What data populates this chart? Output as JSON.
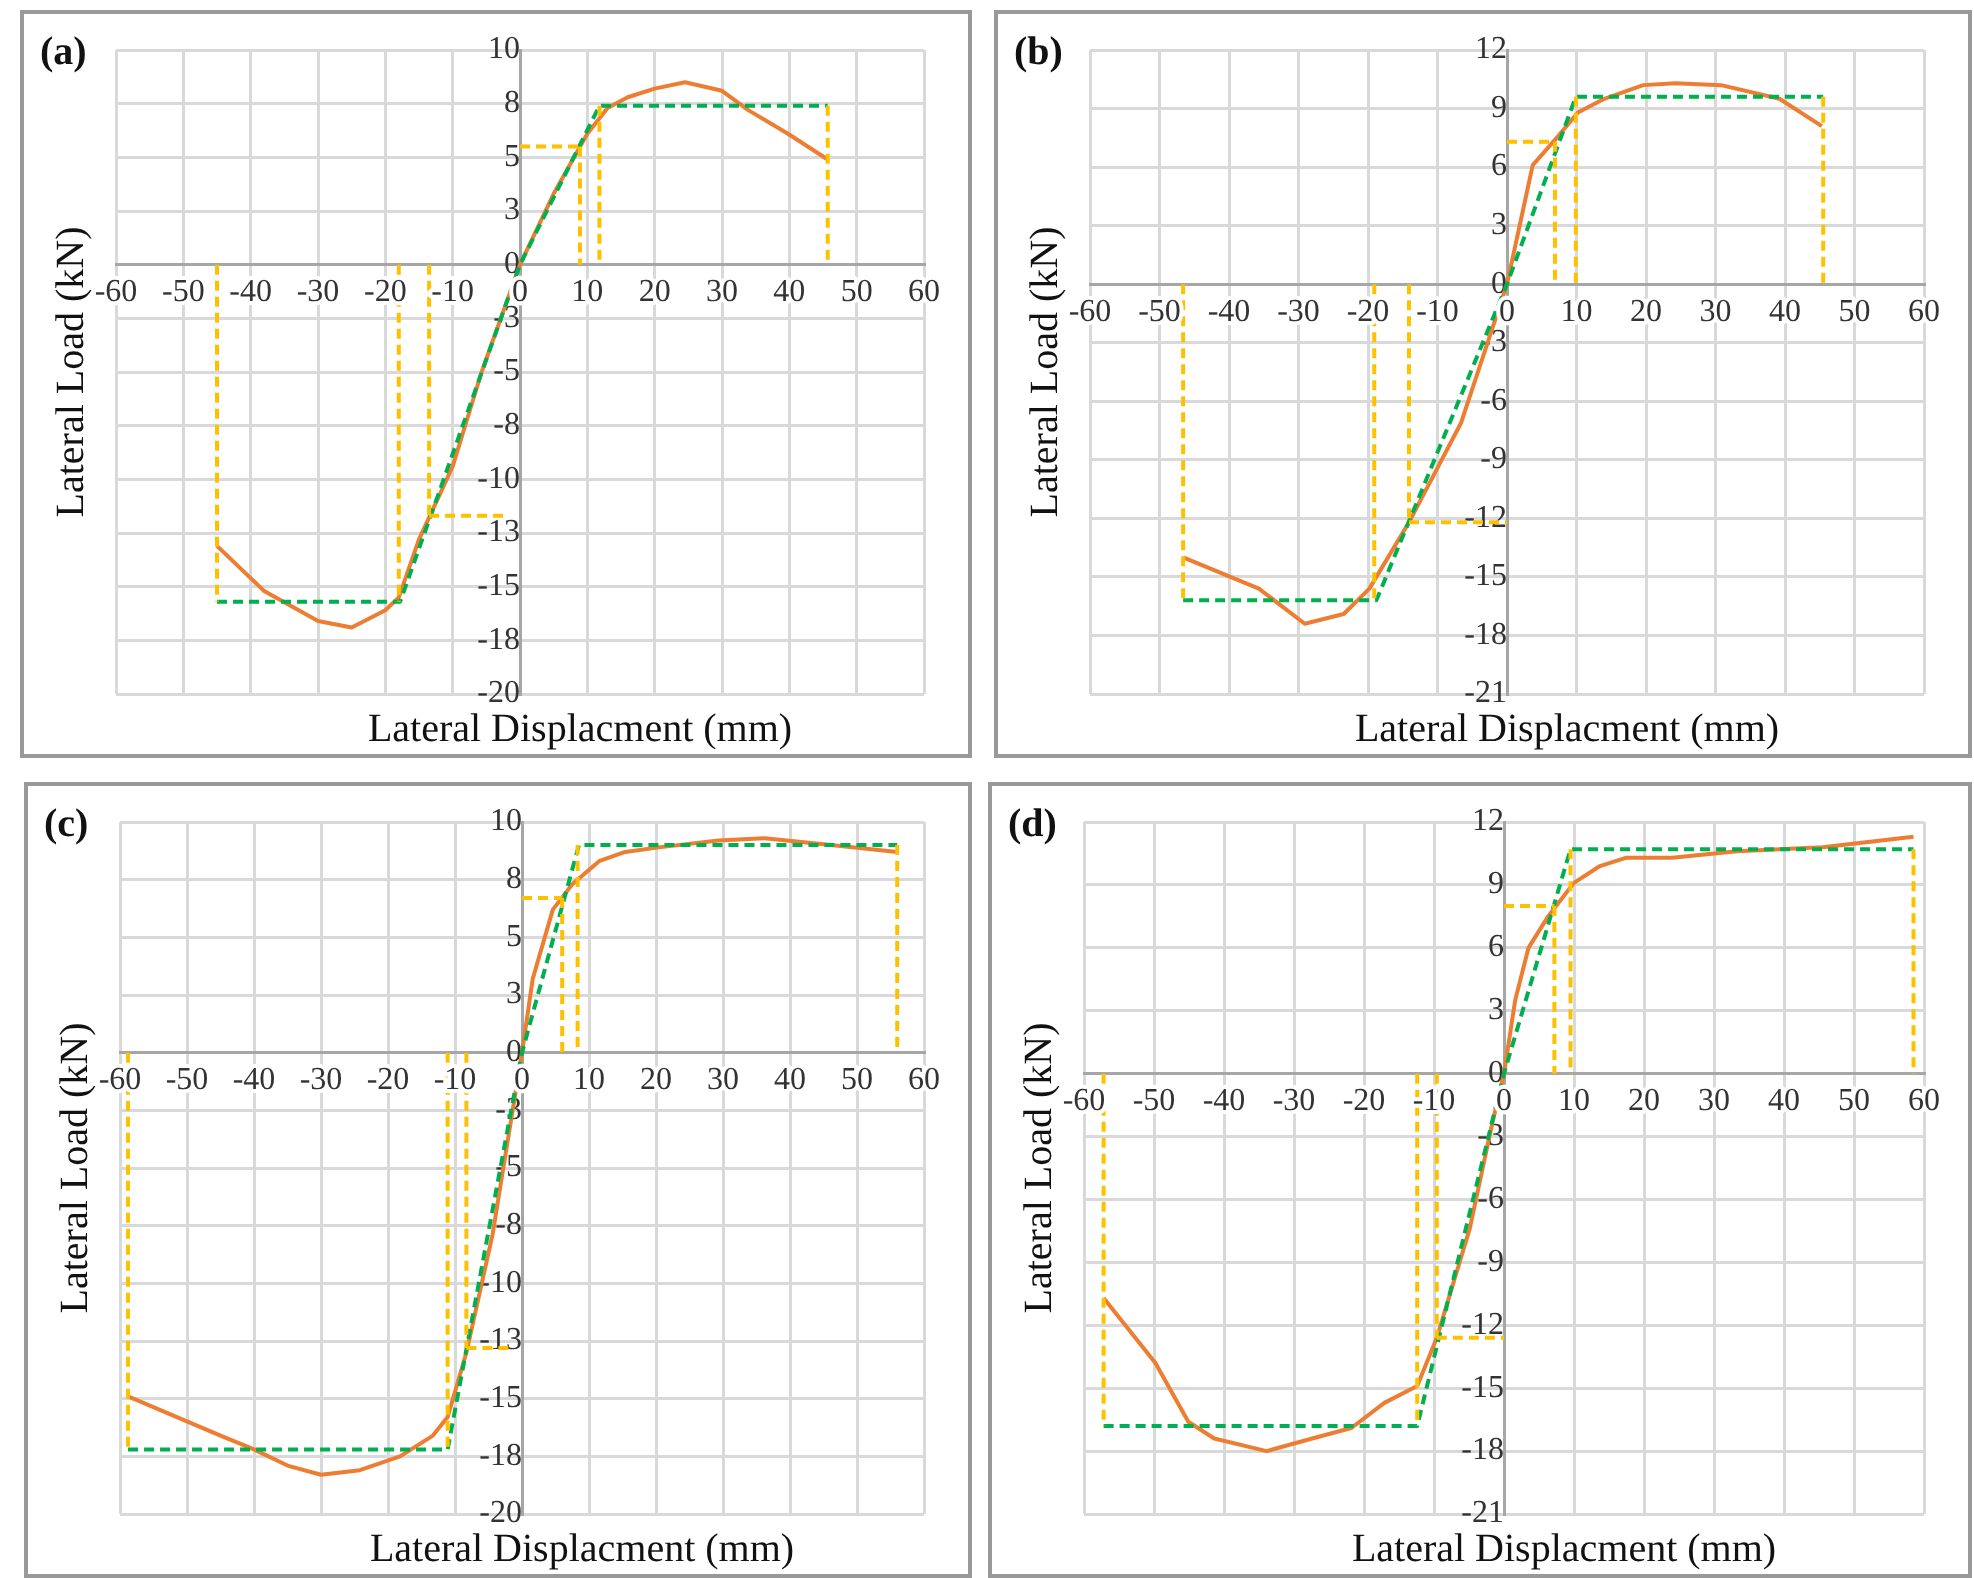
{
  "chart_data": [
    {
      "type": "line",
      "title": "(a)",
      "xlabel": "Lateral Displacment (mm)",
      "ylabel": "Lateral Load (kN)",
      "xlim": [
        -60,
        60
      ],
      "xticks": [
        -60,
        -50,
        -40,
        -30,
        -20,
        -10,
        0,
        10,
        20,
        30,
        40,
        50,
        60
      ],
      "ylim": [
        -20,
        10
      ],
      "yticks": [
        -20,
        {
          "value": -17.5,
          "label": "-18"
        },
        -15,
        {
          "value": -12.5,
          "label": "-13"
        },
        -10,
        {
          "value": -7.5,
          "label": "-8"
        },
        -5,
        {
          "value": -2.5,
          "label": "-3"
        },
        0,
        {
          "value": 2.5,
          "label": "3"
        },
        5,
        {
          "value": 7.5,
          "label": "8"
        },
        10
      ],
      "grid": true,
      "marker": "none",
      "series": [
        {
          "color": "#ffc000",
          "line_style": "dashed",
          "x": [
            -45,
            -45,
            null,
            -18,
            -18,
            null,
            -13.5,
            -13.5,
            null,
            -13.5,
            -1.8,
            null,
            0,
            8.9,
            null,
            8.9,
            8.9,
            null,
            11.8,
            11.8,
            null,
            45.7,
            45.7
          ],
          "values": [
            0,
            -15.7,
            null,
            0,
            -15.7,
            null,
            0,
            -11.7,
            null,
            -11.7,
            -11.7,
            null,
            5.5,
            5.5,
            null,
            5.5,
            0,
            null,
            7.4,
            0,
            null,
            7.4,
            0
          ]
        },
        {
          "color": "#00b050",
          "line_style": "dashed",
          "x": [
            -45,
            -17.8,
            0,
            11.8,
            45.7
          ],
          "values": [
            -15.7,
            -15.7,
            0,
            7.4,
            7.4
          ]
        },
        {
          "color": "#ed7d31",
          "line_style": "solid",
          "x": [
            -45,
            -38,
            -30,
            -25,
            -20,
            -18,
            -15,
            -10,
            -5.7,
            0,
            5,
            10,
            13,
            16,
            20,
            24.5,
            30,
            33.9,
            39.8,
            45.7
          ],
          "values": [
            -13.1,
            -15.2,
            -16.6,
            -16.9,
            -16.1,
            -15.5,
            -12.8,
            -9.4,
            -5,
            0,
            3.3,
            6.1,
            7.3,
            7.8,
            8.2,
            8.5,
            8.1,
            7.2,
            6.1,
            4.9
          ]
        }
      ]
    },
    {
      "type": "line",
      "title": "(b)",
      "xlabel": "Lateral Displacment (mm)",
      "ylabel": "Lateral Load (kN)",
      "xlim": [
        -60,
        60
      ],
      "xticks": [
        -60,
        -50,
        -40,
        -30,
        -20,
        -10,
        0,
        10,
        20,
        30,
        40,
        50,
        60
      ],
      "ylim": [
        -21,
        12
      ],
      "yticks": [
        -21,
        -18,
        -15,
        -12,
        -9,
        -6,
        -3,
        0,
        3,
        6,
        9,
        12
      ],
      "grid": true,
      "marker": "none",
      "series": [
        {
          "color": "#ffc000",
          "line_style": "dashed",
          "x": [
            -46.6,
            -46.6,
            null,
            -19.1,
            -19.1,
            null,
            -14.1,
            -14.1,
            null,
            -14.1,
            0,
            null,
            0,
            6.9,
            null,
            6.9,
            6.9,
            null,
            9.9,
            9.9,
            null,
            45.5,
            45.5
          ],
          "values": [
            0,
            -16.2,
            null,
            0,
            -16.2,
            null,
            0,
            -12.2,
            null,
            -12.2,
            -12.2,
            null,
            7.3,
            7.3,
            null,
            7.3,
            0,
            null,
            9.6,
            0,
            null,
            9.6,
            0
          ]
        },
        {
          "color": "#00b050",
          "line_style": "dashed",
          "x": [
            -46.6,
            -18.8,
            0,
            9.9,
            45.5
          ],
          "values": [
            -16.2,
            -16.2,
            0,
            9.6,
            9.6
          ]
        },
        {
          "color": "#ed7d31",
          "line_style": "solid",
          "x": [
            -46.6,
            -35.7,
            -29.1,
            -23.5,
            -19.8,
            -14.1,
            -6.6,
            0,
            3.7,
            7.4,
            10.2,
            14,
            19.6,
            24.3,
            30.8,
            39.2,
            45.3
          ],
          "values": [
            -14,
            -15.6,
            -17.4,
            -16.9,
            -15.6,
            -12.2,
            -7.1,
            0,
            6.1,
            7.6,
            8.8,
            9.5,
            10.2,
            10.3,
            10.2,
            9.5,
            8.1
          ]
        }
      ]
    },
    {
      "type": "line",
      "title": "(c)",
      "xlabel": "Lateral Displacment (mm)",
      "ylabel": "Lateral Load (kN)",
      "xlim": [
        -60,
        60
      ],
      "xticks": [
        -60,
        -50,
        -40,
        -30,
        -20,
        -10,
        0,
        10,
        20,
        30,
        40,
        50,
        60
      ],
      "ylim": [
        -20,
        10
      ],
      "yticks": [
        -20,
        {
          "value": -17.5,
          "label": "-18"
        },
        -15,
        {
          "value": -12.5,
          "label": "-13"
        },
        -10,
        {
          "value": -7.5,
          "label": "-8"
        },
        -5,
        {
          "value": -2.5,
          "label": "-3"
        },
        0,
        {
          "value": 2.5,
          "label": "3"
        },
        5,
        {
          "value": 7.5,
          "label": "8"
        },
        10
      ],
      "grid": true,
      "marker": "none",
      "series": [
        {
          "color": "#ffc000",
          "line_style": "dashed",
          "x": [
            -58.8,
            -58.8,
            null,
            -11.1,
            -11.1,
            null,
            -8.3,
            -8.3,
            null,
            -8.3,
            -1.9,
            null,
            0,
            6,
            null,
            6,
            6,
            null,
            8.3,
            8.3,
            null,
            56,
            56
          ],
          "values": [
            0,
            -17.2,
            null,
            0,
            -17.2,
            null,
            0,
            -12.8,
            null,
            -12.8,
            -12.8,
            null,
            6.7,
            6.7,
            null,
            6.7,
            0,
            null,
            9,
            0,
            null,
            9,
            0
          ]
        },
        {
          "color": "#00b050",
          "line_style": "dashed",
          "x": [
            -58.8,
            -11.1,
            0,
            8.5,
            56
          ],
          "values": [
            -17.2,
            -17.2,
            0,
            9,
            9
          ]
        },
        {
          "color": "#ed7d31",
          "line_style": "solid",
          "x": [
            -58.8,
            -45,
            -40,
            -35,
            -30,
            -24.2,
            -18.2,
            -13.3,
            -11.1,
            -8.3,
            -4.4,
            -1.4,
            0,
            1.6,
            4.6,
            7.5,
            11.5,
            15.4,
            20.4,
            29.3,
            36.2,
            46.1,
            56
          ],
          "values": [
            -14.9,
            -16.6,
            -17.2,
            -17.9,
            -18.3,
            -18.1,
            -17.5,
            -16.6,
            -15.8,
            -13,
            -7.9,
            -2.5,
            0,
            3.2,
            6.2,
            7.3,
            8.3,
            8.7,
            8.9,
            9.2,
            9.3,
            9,
            8.7
          ]
        }
      ]
    },
    {
      "type": "line",
      "title": "(d)",
      "xlabel": "Lateral Displacment (mm)",
      "ylabel": "Lateral Load (kN)",
      "xlim": [
        -60,
        60
      ],
      "xticks": [
        -60,
        -50,
        -40,
        -30,
        -20,
        -10,
        0,
        10,
        20,
        30,
        40,
        50,
        60
      ],
      "ylim": [
        -21,
        12
      ],
      "yticks": [
        -21,
        -18,
        -15,
        -12,
        -9,
        -6,
        -3,
        0,
        3,
        6,
        9,
        12
      ],
      "grid": true,
      "marker": "none",
      "series": [
        {
          "color": "#ffc000",
          "line_style": "dashed",
          "x": [
            -57.2,
            -57.2,
            null,
            -12.4,
            -12.4,
            null,
            -9.6,
            -9.6,
            null,
            -9.6,
            0,
            null,
            0,
            7.2,
            null,
            7.2,
            7.2,
            null,
            9.5,
            9.5,
            null,
            58.5,
            58.5
          ],
          "values": [
            0,
            -16.8,
            null,
            0,
            -16.8,
            null,
            0,
            -12.6,
            null,
            -12.6,
            -12.6,
            null,
            8,
            8,
            null,
            8,
            0,
            null,
            10.7,
            0,
            null,
            10.7,
            0
          ]
        },
        {
          "color": "#00b050",
          "line_style": "dashed",
          "x": [
            -57.2,
            -12.4,
            0,
            9.5,
            58.5
          ],
          "values": [
            -16.8,
            -16.8,
            0,
            10.7,
            10.7
          ]
        },
        {
          "color": "#ed7d31",
          "line_style": "solid",
          "x": [
            -57.2,
            -49.8,
            -45.1,
            -41.4,
            -33.9,
            -27.4,
            -21.8,
            -17.1,
            -12.4,
            -9.6,
            -4.9,
            -1.7,
            0,
            1.6,
            3.5,
            6.3,
            10,
            13.7,
            17.5,
            24,
            33.3,
            45.5,
            58.5
          ],
          "values": [
            -10.7,
            -13.8,
            -16.6,
            -17.4,
            -18,
            -17.4,
            -16.9,
            -15.7,
            -14.9,
            -12.6,
            -7.4,
            -2.4,
            0,
            3.5,
            6,
            7.5,
            9.1,
            9.9,
            10.3,
            10.3,
            10.6,
            10.8,
            11.3
          ]
        }
      ]
    }
  ]
}
